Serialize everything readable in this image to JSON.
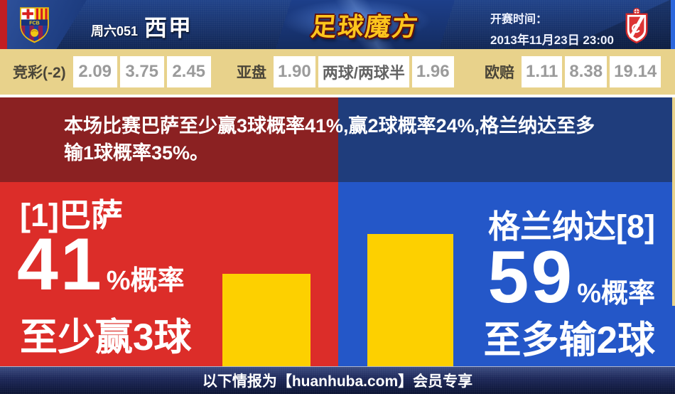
{
  "header": {
    "match_tag": "周六051",
    "league": "西甲",
    "site_logo": "足球魔方",
    "kickoff_label": "开赛时间：",
    "kickoff_time": "2013年11月23日 23:00",
    "home_crest_text": "FCB"
  },
  "odds_bar": {
    "jingcai": {
      "label": "竞彩(-2)",
      "values": [
        "2.09",
        "3.75",
        "2.45"
      ]
    },
    "asian": {
      "label": "亚盘",
      "home_odds": "1.90",
      "handicap": "两球/两球半",
      "away_odds": "1.96"
    },
    "european": {
      "label": "欧赔",
      "values": [
        "1.11",
        "8.38",
        "19.14"
      ]
    }
  },
  "summary_text": "本场比赛巴萨至少赢3球概率41%,赢2球概率24%,格兰纳达至多输1球概率35%。",
  "home_panel": {
    "team": "[1]巴萨",
    "probability": "41",
    "probability_suffix": "%概率",
    "outcome": "至少赢3球",
    "probability_pct": 41
  },
  "away_panel": {
    "team": "格兰纳达[8]",
    "probability": "59",
    "probability_suffix": "%概率",
    "outcome": "至多输2球",
    "probability_pct": 59
  },
  "footer_text": "以下情报为【huanhuba.com】会员专享",
  "colors": {
    "home_red": "#dc2d29",
    "away_blue": "#2457c8",
    "bar_yellow": "#fdd000",
    "odds_bg": "#e8d28b",
    "summary_home": "#8b2122",
    "summary_away": "#1f3d7c"
  }
}
